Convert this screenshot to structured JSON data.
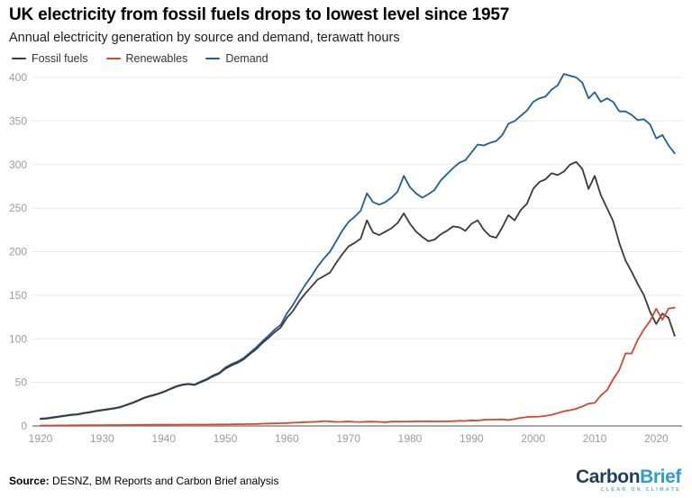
{
  "header": {
    "title": "UK electricity from fossil fuels drops to lowest level since 1957",
    "subtitle": "Annual electricity generation by source and demand, terawatt hours"
  },
  "legend": {
    "items": [
      {
        "label": "Fossil fuels",
        "color": "#3a3a3a"
      },
      {
        "label": "Renewables",
        "color": "#d8452f"
      },
      {
        "label": "Demand",
        "color": "#1e5d97"
      }
    ]
  },
  "chart_data": {
    "type": "line",
    "title": "UK electricity from fossil fuels drops to lowest level since 1957",
    "subtitle": "Annual electricity generation by source and demand, terawatt hours",
    "unit": "terawatt hours",
    "ylim": [
      0,
      400
    ],
    "grid": true,
    "legend_position": "top-left",
    "yticks": [
      0,
      50,
      100,
      150,
      200,
      250,
      300,
      350,
      400
    ],
    "xticks": [
      1920,
      1930,
      1940,
      1950,
      1960,
      1970,
      1980,
      1990,
      2000,
      2010,
      2020
    ],
    "years": [
      1920,
      1921,
      1922,
      1923,
      1924,
      1925,
      1926,
      1927,
      1928,
      1929,
      1930,
      1931,
      1932,
      1933,
      1934,
      1935,
      1936,
      1937,
      1938,
      1939,
      1940,
      1941,
      1942,
      1943,
      1944,
      1945,
      1946,
      1947,
      1948,
      1949,
      1950,
      1951,
      1952,
      1953,
      1954,
      1955,
      1956,
      1957,
      1958,
      1959,
      1960,
      1961,
      1962,
      1963,
      1964,
      1965,
      1966,
      1967,
      1968,
      1969,
      1970,
      1971,
      1972,
      1973,
      1974,
      1975,
      1976,
      1977,
      1978,
      1979,
      1980,
      1981,
      1982,
      1983,
      1984,
      1985,
      1986,
      1987,
      1988,
      1989,
      1990,
      1991,
      1992,
      1993,
      1994,
      1995,
      1996,
      1997,
      1998,
      1999,
      2000,
      2001,
      2002,
      2003,
      2004,
      2005,
      2006,
      2007,
      2008,
      2009,
      2010,
      2011,
      2012,
      2013,
      2014,
      2015,
      2016,
      2017,
      2018,
      2019,
      2020,
      2021,
      2022,
      2023
    ],
    "series": [
      {
        "name": "Fossil fuels",
        "color": "#3a3a3a",
        "values": [
          8,
          8.5,
          9.5,
          10.5,
          11.5,
          12.5,
          13,
          14.5,
          15.5,
          17,
          18,
          19,
          20,
          21.5,
          24,
          26.5,
          29.5,
          32.5,
          34.5,
          36.5,
          39,
          42,
          45,
          47,
          48,
          47,
          50,
          53,
          57,
          60,
          65.5,
          69.5,
          72.5,
          76.5,
          82.5,
          88,
          95,
          101,
          107.5,
          113,
          124,
          132,
          143,
          152,
          160,
          168,
          172,
          176,
          187,
          197,
          206,
          210,
          215,
          236,
          222,
          219,
          223,
          227,
          233,
          244,
          232,
          223,
          217,
          212,
          214,
          220,
          224,
          229,
          228,
          224,
          232,
          236,
          225,
          218,
          216,
          228,
          242,
          236,
          248,
          255,
          272,
          280,
          283,
          290,
          288,
          292,
          300,
          303,
          295,
          272,
          287,
          265,
          250,
          235,
          210,
          190,
          177,
          163,
          150,
          131,
          117,
          129,
          124,
          103.5
        ]
      },
      {
        "name": "Renewables",
        "color": "#d8452f",
        "values": [
          0.5,
          0.5,
          0.5,
          0.6,
          0.6,
          0.7,
          0.7,
          0.8,
          0.8,
          0.9,
          0.9,
          1,
          1,
          1,
          1.1,
          1.1,
          1.2,
          1.2,
          1.3,
          1.3,
          1.3,
          1.4,
          1.4,
          1.5,
          1.5,
          1.5,
          1.6,
          1.6,
          1.7,
          1.8,
          1.8,
          1.9,
          2,
          2.1,
          2.2,
          2.3,
          2.6,
          2.8,
          3,
          3.1,
          3.3,
          3.7,
          4,
          4.3,
          4.6,
          4.9,
          5.6,
          5.2,
          4.6,
          4.8,
          5.2,
          4.7,
          4.5,
          4.9,
          5,
          4.7,
          4.3,
          5,
          5,
          5.1,
          5.1,
          5.3,
          5.3,
          5.4,
          5.2,
          5.3,
          5.3,
          5.5,
          5.9,
          5.7,
          6.4,
          6.2,
          7,
          7.2,
          7.3,
          7.5,
          6.8,
          8,
          9.3,
          10.2,
          10.5,
          10.8,
          11.5,
          12.8,
          14.7,
          16.9,
          18.1,
          19.7,
          22.3,
          25.6,
          26.5,
          34.9,
          41.1,
          53.7,
          64.4,
          83.3,
          83.2,
          98.9,
          110.9,
          120.6,
          134.5,
          121.9,
          134.8,
          135.8
        ]
      },
      {
        "name": "Demand",
        "color": "#1e5d97",
        "values": [
          8.5,
          9,
          10,
          11,
          12,
          13,
          13.5,
          15,
          16,
          17.5,
          18.5,
          19.5,
          20.5,
          22,
          24.5,
          27,
          30,
          33,
          35,
          37,
          39.5,
          42.5,
          45.5,
          47.5,
          48.5,
          47.5,
          51,
          54,
          58,
          61,
          67,
          71,
          74,
          78,
          84,
          90,
          97,
          103.5,
          110.5,
          116,
          129,
          139,
          151,
          162,
          172,
          183,
          192,
          200,
          212,
          224,
          234,
          240,
          247,
          267,
          257,
          254,
          257,
          262,
          269,
          287,
          274,
          267,
          262,
          266,
          271,
          282,
          289,
          296,
          302,
          305,
          314,
          323,
          322,
          325,
          327,
          334,
          347,
          350,
          356,
          362,
          372,
          376,
          378,
          386,
          391,
          404,
          402,
          400,
          394,
          376,
          383,
          372,
          376,
          372,
          361,
          361,
          357,
          351,
          352,
          346,
          330,
          334,
          322,
          313
        ]
      }
    ]
  },
  "footer": {
    "source_label": "Source:",
    "source_text": " DESNZ, BM Reports and Carbon Brief analysis",
    "logo": {
      "part1": "Carbon",
      "part2": "Brief",
      "tagline": "CLEAR ON CLIMATE"
    }
  }
}
